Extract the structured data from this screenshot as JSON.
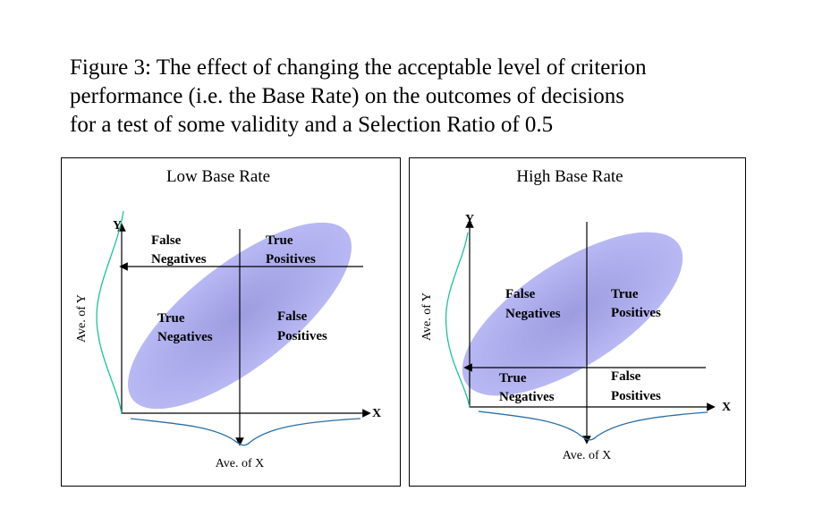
{
  "caption": {
    "lines": [
      "Figure 3: The effect of changing the acceptable level of criterion",
      "performance (i.e. the Base Rate) on the outcomes of decisions",
      "for a test of some validity and a Selection Ratio of 0.5"
    ]
  },
  "panels": [
    {
      "title": "Low Base Rate",
      "y_axis": "Y",
      "x_axis": "X",
      "ave_x": "Ave. of X",
      "ave_y": "Ave. of Y",
      "quadrants": {
        "top_left": [
          "False",
          "Negatives"
        ],
        "top_right": [
          "True",
          "Positives"
        ],
        "bottom_left": [
          "True",
          "Negatives"
        ],
        "bottom_right": [
          "False",
          "Positives"
        ]
      }
    },
    {
      "title": "High Base Rate",
      "y_axis": "Y",
      "x_axis": "X",
      "ave_x": "Ave. of X",
      "ave_y": "Ave. of Y",
      "quadrants": {
        "top_left": [
          "False",
          "Negatives"
        ],
        "top_right": [
          "True",
          "Positives"
        ],
        "bottom_left": [
          "True",
          "Negatives"
        ],
        "bottom_right": [
          "False",
          "Positives"
        ]
      }
    }
  ],
  "colors": {
    "ellipse": "#b3b3f2",
    "ellipse_center": "#9c9ce0",
    "y_curve": "#19c3a0",
    "x_curve": "#2a6fa6",
    "lines": "#000000"
  }
}
